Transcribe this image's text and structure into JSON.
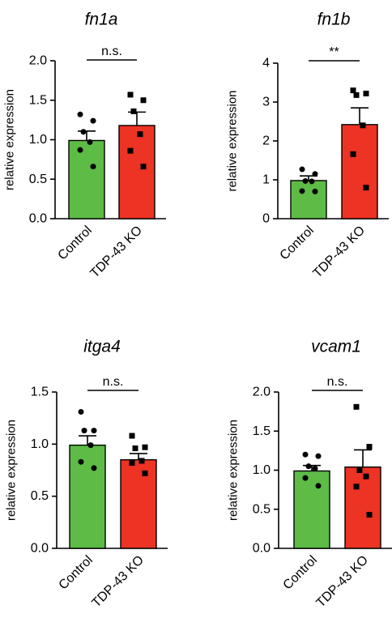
{
  "chart_data": [
    {
      "type": "bar",
      "title": "fn1a",
      "ylabel": "relative expression",
      "categories": [
        "Control",
        "TDP-43 KO"
      ],
      "values": [
        0.99,
        1.18
      ],
      "errors": [
        0.12,
        0.17
      ],
      "colors": [
        "#5dbb46",
        "#ec3324"
      ],
      "ylim": [
        0,
        2.0
      ],
      "yticks": [
        "0.0",
        "0.5",
        "1.0",
        "1.5",
        "2.0"
      ],
      "significance": "n.s.",
      "points": [
        [
          1.32,
          1.24,
          1.1,
          0.97,
          0.87,
          0.66
        ],
        [
          1.57,
          1.5,
          1.36,
          1.07,
          0.86,
          0.66
        ]
      ]
    },
    {
      "type": "bar",
      "title": "fn1b",
      "ylabel": "relative expression",
      "categories": [
        "Control",
        "TDP-43 KO"
      ],
      "values": [
        0.98,
        2.42
      ],
      "errors": [
        0.12,
        0.43
      ],
      "colors": [
        "#5dbb46",
        "#ec3324"
      ],
      "ylim": [
        0,
        4
      ],
      "yticks": [
        "0",
        "1",
        "2",
        "3",
        "4"
      ],
      "significance": "**",
      "points": [
        [
          1.27,
          1.15,
          0.97,
          0.96,
          0.71,
          0.7
        ],
        [
          3.3,
          3.22,
          3.18,
          2.4,
          1.66,
          0.8
        ]
      ]
    },
    {
      "type": "bar",
      "title": "itga4",
      "ylabel": "relative expression",
      "categories": [
        "Control",
        "TDP-43 KO"
      ],
      "values": [
        0.99,
        0.85
      ],
      "errors": [
        0.09,
        0.06
      ],
      "colors": [
        "#5dbb46",
        "#ec3324"
      ],
      "ylim": [
        0,
        1.5
      ],
      "yticks": [
        "0.0",
        "0.5",
        "1.0",
        "1.5"
      ],
      "significance": "n.s.",
      "points": [
        [
          1.31,
          1.13,
          1.13,
          0.99,
          0.83,
          0.77
        ],
        [
          1.08,
          0.97,
          0.96,
          0.84,
          0.82,
          0.72
        ]
      ]
    },
    {
      "type": "bar",
      "title": "vcam1",
      "ylabel": "relative expression",
      "categories": [
        "Control",
        "TDP-43 KO"
      ],
      "values": [
        0.99,
        1.04
      ],
      "errors": [
        0.07,
        0.22
      ],
      "colors": [
        "#5dbb46",
        "#ec3324"
      ],
      "ylim": [
        0,
        2.0
      ],
      "yticks": [
        "0.0",
        "0.5",
        "1.0",
        "1.5",
        "2.0"
      ],
      "significance": "n.s.",
      "points": [
        [
          1.2,
          1.18,
          1.05,
          1.02,
          0.9,
          0.8
        ],
        [
          1.81,
          1.3,
          1.0,
          0.92,
          0.79,
          0.43
        ]
      ]
    }
  ]
}
